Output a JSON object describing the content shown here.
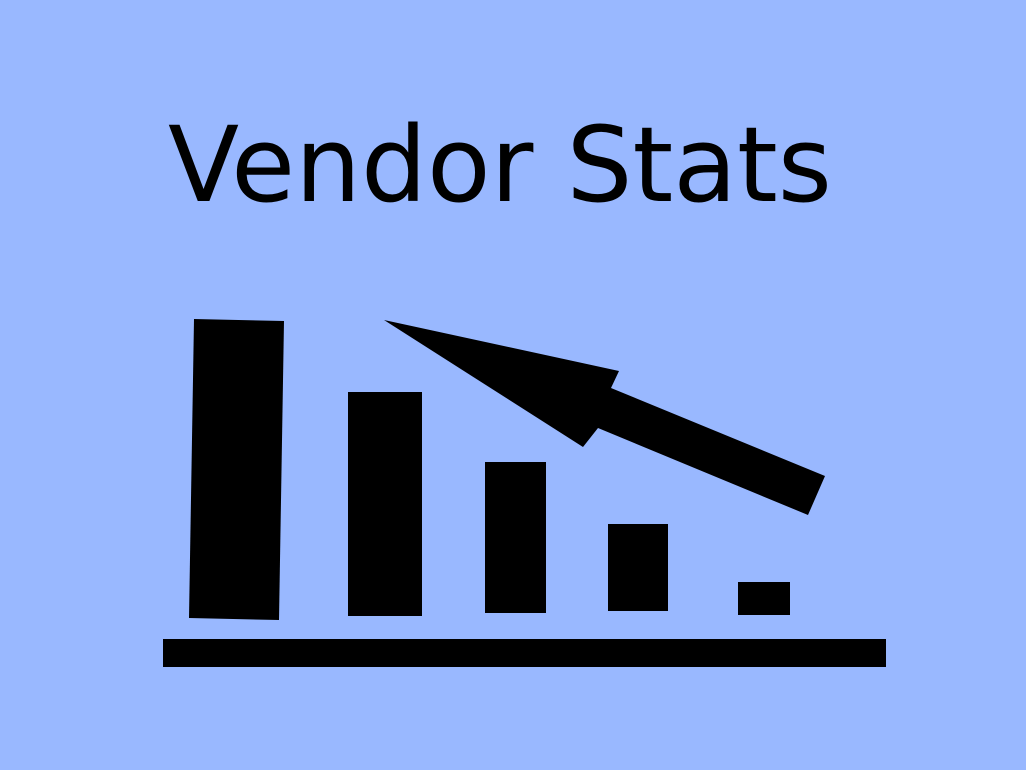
{
  "slide": {
    "title": "Vendor Stats",
    "background_color": "#99b8ff",
    "ink_color": "#000000"
  },
  "illustration": {
    "icon": "bar-chart-with-arrow-icon"
  }
}
